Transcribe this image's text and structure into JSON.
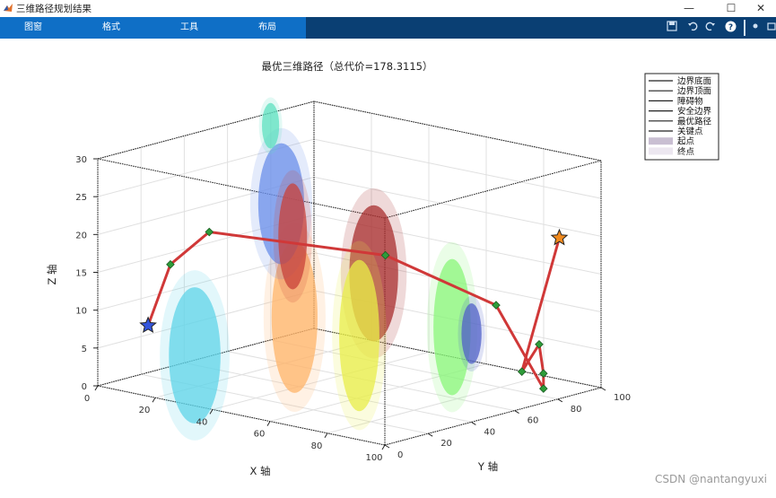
{
  "window": {
    "title": "三维路径规划结果",
    "minimize_glyph": "—",
    "maximize_glyph": "☐",
    "close_glyph": "✕"
  },
  "toolbar": {
    "tabs": [
      {
        "label": "图窗"
      },
      {
        "label": "格式"
      },
      {
        "label": "工具"
      },
      {
        "label": "布局"
      }
    ],
    "icons": [
      "save-icon",
      "undo-icon",
      "redo-icon",
      "help-icon",
      "dock-icon",
      "undock-icon"
    ]
  },
  "watermark": "CSDN @nantangyuxi",
  "chart_data": {
    "type": "scatter3d",
    "title": "最优三维路径（总代价=178.3115）",
    "xlabel": "X 轴",
    "ylabel": "Y 轴",
    "zlabel": "Z 轴",
    "xlim": [
      0,
      100
    ],
    "ylim": [
      0,
      100
    ],
    "zlim": [
      0,
      30
    ],
    "xticks": [
      0,
      20,
      40,
      60,
      80,
      100
    ],
    "yticks": [
      0,
      20,
      40,
      60,
      80,
      100
    ],
    "zticks": [
      0,
      5,
      10,
      15,
      20,
      25,
      30
    ],
    "grid": true,
    "legend_position": "top-right",
    "legend": [
      {
        "label": "边界底面",
        "style": "line",
        "color": "#222222"
      },
      {
        "label": "边界顶面",
        "style": "line",
        "color": "#222222"
      },
      {
        "label": "障碍物",
        "style": "line",
        "color": "#222222"
      },
      {
        "label": "安全边界",
        "style": "line",
        "color": "#222222"
      },
      {
        "label": "最优路径",
        "style": "line",
        "color": "#222222"
      },
      {
        "label": "关键点",
        "style": "line",
        "color": "#222222"
      },
      {
        "label": "起点",
        "style": "patch",
        "color": "#c9bfd2"
      },
      {
        "label": "终点",
        "style": "patch",
        "color": "#ece7f0"
      }
    ],
    "obstacles": [
      {
        "color": "#5fd4e8",
        "x": 30,
        "y": 5,
        "z": 6,
        "rx": 18,
        "rz": 9
      },
      {
        "color": "#ffb46a",
        "x": 55,
        "y": 18,
        "z": 12,
        "rx": 16,
        "rz": 10
      },
      {
        "color": "#6b8fea",
        "x": 30,
        "y": 45,
        "z": 23,
        "rx": 16,
        "rz": 8
      },
      {
        "color": "#c8423a",
        "x": 34,
        "y": 45,
        "z": 19,
        "rx": 10,
        "rz": 7
      },
      {
        "color": "#5ee0c0",
        "x": 15,
        "y": 60,
        "z": 31,
        "rx": 6,
        "rz": 3
      },
      {
        "color": "#a82e2e",
        "x": 66,
        "y": 40,
        "z": 17,
        "rx": 17,
        "rz": 9
      },
      {
        "color": "#e8ee48",
        "x": 70,
        "y": 28,
        "z": 10,
        "rx": 14,
        "rz": 10
      },
      {
        "color": "#8af57a",
        "x": 82,
        "y": 55,
        "z": 10,
        "rx": 13,
        "rz": 9
      },
      {
        "color": "#5060c8",
        "x": 85,
        "y": 60,
        "z": 9,
        "rx": 7,
        "rz": 4
      }
    ],
    "path": {
      "x": [
        10,
        14,
        20,
        55,
        80,
        95,
        95,
        95,
        95,
        93
      ],
      "y": [
        10,
        15,
        25,
        60,
        78,
        80,
        80,
        78,
        70,
        90
      ],
      "z": [
        8,
        16,
        20,
        17,
        11,
        1,
        3,
        7,
        4,
        20
      ]
    },
    "key_points": {
      "x": [
        14,
        20,
        55,
        80,
        95,
        95,
        95,
        95
      ],
      "y": [
        15,
        25,
        60,
        78,
        80,
        80,
        78,
        70
      ],
      "z": [
        16,
        20,
        17,
        11,
        1,
        3,
        7,
        4
      ]
    },
    "start": {
      "x": 10,
      "y": 10,
      "z": 8
    },
    "goal": {
      "x": 93,
      "y": 90,
      "z": 20
    },
    "colors": {
      "path": "#d03838",
      "keypoint": "#2e9c3a",
      "start": "#3355dd",
      "goal": "#f08a1e",
      "axis": "#262626",
      "grid": "#e0e0e0"
    }
  }
}
